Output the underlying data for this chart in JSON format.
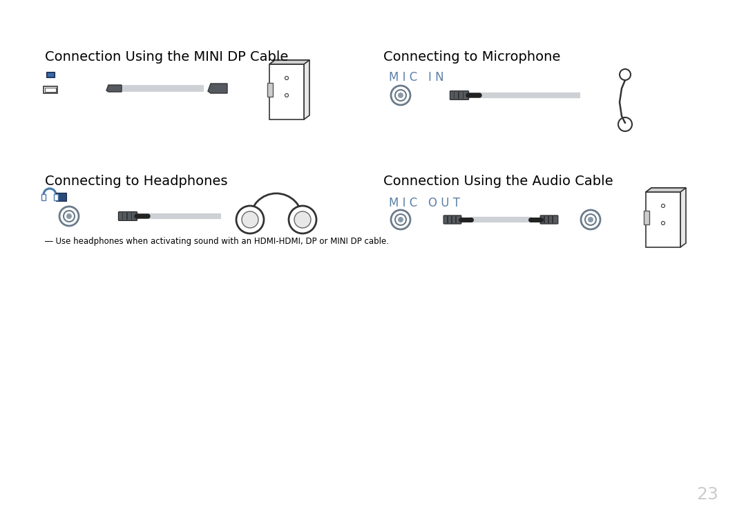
{
  "bg_color": "#ffffff",
  "text_color": "#000000",
  "blue_color": "#5b7fa6",
  "dark_gray": "#4a4a4a",
  "mid_gray": "#6a6a6a",
  "light_gray": "#b0b4b8",
  "connector_color": "#555a60",
  "cable_color": "#cdd0d4",
  "title1": "Connection Using the MINI DP Cable",
  "title2": "Connecting to Headphones",
  "title3": "Connecting to Microphone",
  "title4": "Connection Using the Audio Cable",
  "mic_in_label": "M I C   I N",
  "mic_out_label": "M I C   O U T",
  "footnote": "― Use headphones when activating sound with an HDMI-HDMI, DP or MINI DP cable.",
  "page_number": "23"
}
